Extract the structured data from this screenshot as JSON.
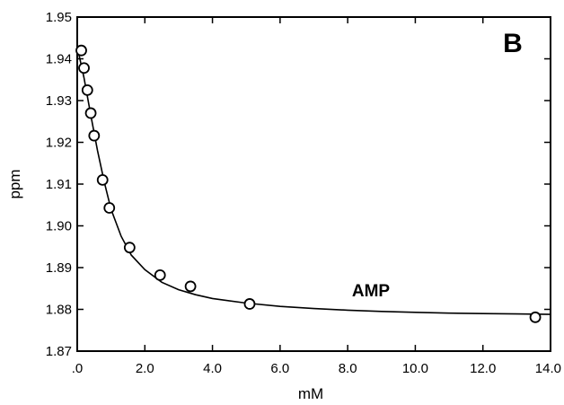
{
  "chart_data": {
    "type": "scatter",
    "panel_label": "B",
    "xlabel": "mM",
    "ylabel": "ppm",
    "xlim": [
      0.0,
      14.0
    ],
    "ylim": [
      1.87,
      1.95
    ],
    "x_ticks": [
      0.0,
      2.0,
      4.0,
      6.0,
      8.0,
      10.0,
      12.0,
      14.0
    ],
    "x_tick_labels": [
      ".0",
      "2.0",
      "4.0",
      "6.0",
      "8.0",
      "10.0",
      "12.0",
      "14.0"
    ],
    "y_ticks": [
      1.87,
      1.88,
      1.89,
      1.9,
      1.91,
      1.92,
      1.93,
      1.94,
      1.95
    ],
    "y_tick_labels": [
      "1.87",
      "1.88",
      "1.89",
      "1.90",
      "1.91",
      "1.92",
      "1.93",
      "1.94",
      "1.95"
    ],
    "grid": false,
    "series": [
      {
        "name": "AMP",
        "marker": "open-circle",
        "points": [
          {
            "x": 0.12,
            "y": 1.942
          },
          {
            "x": 0.2,
            "y": 1.9378
          },
          {
            "x": 0.3,
            "y": 1.9325
          },
          {
            "x": 0.4,
            "y": 1.927
          },
          {
            "x": 0.5,
            "y": 1.9216
          },
          {
            "x": 0.75,
            "y": 1.911
          },
          {
            "x": 0.95,
            "y": 1.9043
          },
          {
            "x": 1.55,
            "y": 1.8948
          },
          {
            "x": 2.45,
            "y": 1.8882
          },
          {
            "x": 3.35,
            "y": 1.8855
          },
          {
            "x": 5.1,
            "y": 1.8813
          },
          {
            "x": 13.55,
            "y": 1.8781
          }
        ],
        "fit_curve": [
          {
            "x": 0.05,
            "y": 1.941
          },
          {
            "x": 0.2,
            "y": 1.9355
          },
          {
            "x": 0.4,
            "y": 1.9265
          },
          {
            "x": 0.6,
            "y": 1.918
          },
          {
            "x": 0.8,
            "y": 1.9105
          },
          {
            "x": 1.0,
            "y": 1.904
          },
          {
            "x": 1.3,
            "y": 1.8975
          },
          {
            "x": 1.6,
            "y": 1.893
          },
          {
            "x": 2.0,
            "y": 1.8895
          },
          {
            "x": 2.5,
            "y": 1.8865
          },
          {
            "x": 3.0,
            "y": 1.8847
          },
          {
            "x": 3.5,
            "y": 1.8835
          },
          {
            "x": 4.0,
            "y": 1.8826
          },
          {
            "x": 5.0,
            "y": 1.8815
          },
          {
            "x": 6.0,
            "y": 1.8807
          },
          {
            "x": 7.0,
            "y": 1.8802
          },
          {
            "x": 8.0,
            "y": 1.8798
          },
          {
            "x": 9.0,
            "y": 1.8795
          },
          {
            "x": 10.0,
            "y": 1.8793
          },
          {
            "x": 11.0,
            "y": 1.8791
          },
          {
            "x": 12.0,
            "y": 1.879
          },
          {
            "x": 13.0,
            "y": 1.8789
          },
          {
            "x": 14.0,
            "y": 1.8788
          }
        ]
      }
    ]
  }
}
